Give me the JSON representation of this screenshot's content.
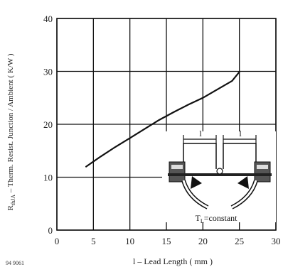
{
  "chart_data": {
    "type": "line",
    "title": "",
    "xlabel": "l – Lead Length ( mm )",
    "ylabel": "RthJA – Therm. Resist. Junction / Ambient ( K/W )",
    "ylabel_parts": {
      "sym": "R",
      "sub": "thJA",
      "rest": " – Therm. Resist. Junction / Ambient ( K/W )"
    },
    "xlim": [
      0,
      30
    ],
    "ylim": [
      0,
      40
    ],
    "xticks": [
      "0",
      "5",
      "10",
      "15",
      "20",
      "25",
      "30"
    ],
    "yticks": [
      "0",
      "10",
      "20",
      "30",
      "40"
    ],
    "grid": true,
    "series": [
      {
        "x": [
          4,
          6,
          8,
          10,
          12,
          14,
          16,
          18,
          20,
          22,
          24,
          25
        ],
        "y": [
          12.0,
          13.9,
          15.7,
          17.4,
          19.1,
          20.8,
          22.3,
          23.7,
          25.0,
          26.6,
          28.2,
          29.9
        ]
      }
    ],
    "inset": {
      "dim_label": "l",
      "condition_label": "TL=constant",
      "condition_parts": {
        "sym": "T",
        "sub": "L",
        "rest": "=constant"
      }
    }
  },
  "figure_code": "94 9061"
}
